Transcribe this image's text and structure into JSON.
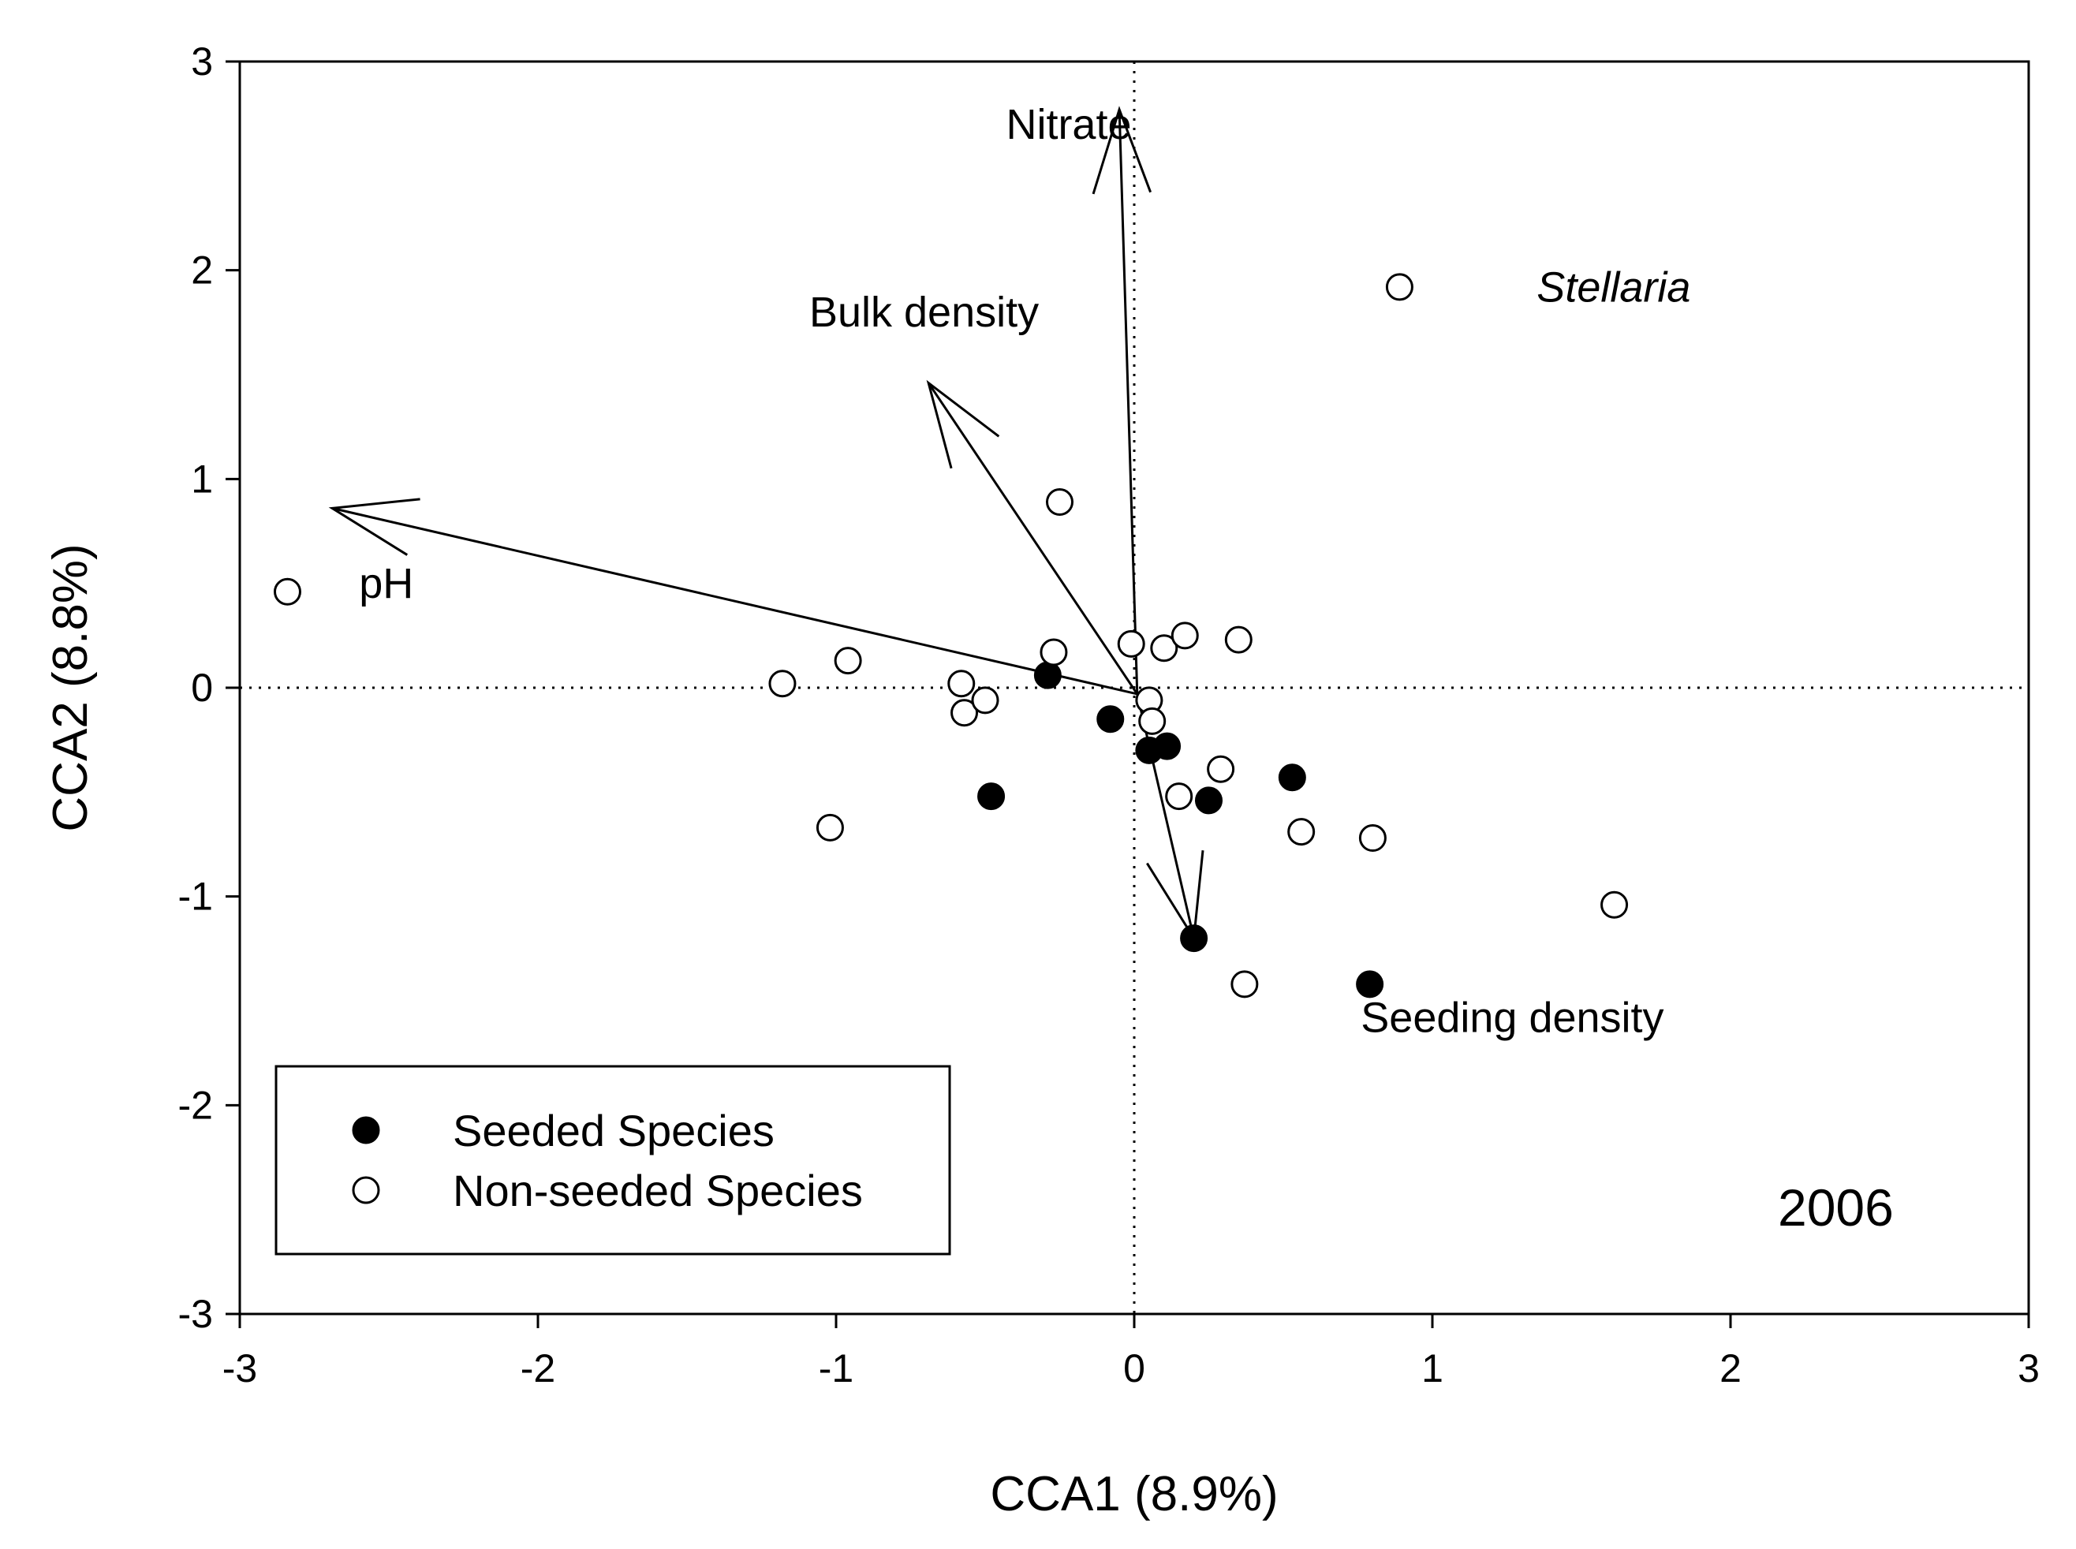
{
  "chart_data": {
    "type": "scatter",
    "title": "",
    "xlabel": "CCA1 (8.9%)",
    "ylabel": "CCA2 (8.8%)",
    "xlim": [
      -3,
      3
    ],
    "ylim": [
      -3,
      3
    ],
    "xticks": [
      -3,
      -2,
      -1,
      0,
      1,
      2,
      3
    ],
    "yticks": [
      -3,
      -2,
      -1,
      0,
      1,
      2,
      3
    ],
    "year_label": "2006",
    "legend": {
      "position": "bottom-left",
      "entries": [
        {
          "label": "Seeded Species",
          "marker": "filled-circle"
        },
        {
          "label": "Non-seeded Species",
          "marker": "open-circle"
        }
      ]
    },
    "series": [
      {
        "name": "Seeded Species",
        "marker": "filled-circle",
        "points": [
          {
            "x": -0.29,
            "y": 0.06
          },
          {
            "x": -0.08,
            "y": -0.15
          },
          {
            "x": 0.05,
            "y": -0.3
          },
          {
            "x": 0.11,
            "y": -0.28
          },
          {
            "x": 0.25,
            "y": -0.54
          },
          {
            "x": -0.48,
            "y": -0.52
          },
          {
            "x": 0.53,
            "y": -0.43
          },
          {
            "x": 0.2,
            "y": -1.2
          },
          {
            "x": 0.79,
            "y": -1.42
          }
        ]
      },
      {
        "name": "Non-seeded Species",
        "marker": "open-circle",
        "points": [
          {
            "x": -2.84,
            "y": 0.46
          },
          {
            "x": -1.18,
            "y": 0.02
          },
          {
            "x": -0.96,
            "y": 0.13
          },
          {
            "x": -1.02,
            "y": -0.67
          },
          {
            "x": -0.58,
            "y": 0.02
          },
          {
            "x": -0.57,
            "y": -0.12
          },
          {
            "x": -0.5,
            "y": -0.06
          },
          {
            "x": -0.27,
            "y": 0.17
          },
          {
            "x": -0.25,
            "y": 0.89
          },
          {
            "x": -0.01,
            "y": 0.21
          },
          {
            "x": 0.1,
            "y": 0.19
          },
          {
            "x": 0.17,
            "y": 0.25
          },
          {
            "x": 0.35,
            "y": 0.23
          },
          {
            "x": 0.05,
            "y": -0.06
          },
          {
            "x": 0.06,
            "y": -0.16
          },
          {
            "x": 0.15,
            "y": -0.52
          },
          {
            "x": 0.29,
            "y": -0.39
          },
          {
            "x": 0.56,
            "y": -0.69
          },
          {
            "x": 0.8,
            "y": -0.72
          },
          {
            "x": 0.37,
            "y": -1.42
          },
          {
            "x": 1.61,
            "y": -1.04
          },
          {
            "x": 0.89,
            "y": 1.92
          }
        ]
      }
    ],
    "arrows": [
      {
        "name": "Nitrate",
        "x0": 0.01,
        "y0": -0.03,
        "x1": -0.05,
        "y1": 2.77
      },
      {
        "name": "Bulk density",
        "x0": 0.01,
        "y0": -0.03,
        "x1": -0.69,
        "y1": 1.46
      },
      {
        "name": "pH",
        "x0": 0.01,
        "y0": -0.03,
        "x1": -2.69,
        "y1": 0.86
      },
      {
        "name": "Seeding density",
        "x0": 0.01,
        "y0": -0.03,
        "x1": 0.2,
        "y1": -1.2
      }
    ],
    "annotations": [
      {
        "text": "Nitrate",
        "x": -0.43,
        "y": 2.63,
        "italic": false
      },
      {
        "text": "Bulk density",
        "x": -1.09,
        "y": 1.73,
        "italic": false
      },
      {
        "text": "pH",
        "x": -2.6,
        "y": 0.43,
        "italic": false
      },
      {
        "text": "Seeding density",
        "x": 0.76,
        "y": -1.65,
        "italic": false
      },
      {
        "text": "Stellaria",
        "x": 1.35,
        "y": 1.85,
        "italic": true
      }
    ]
  }
}
